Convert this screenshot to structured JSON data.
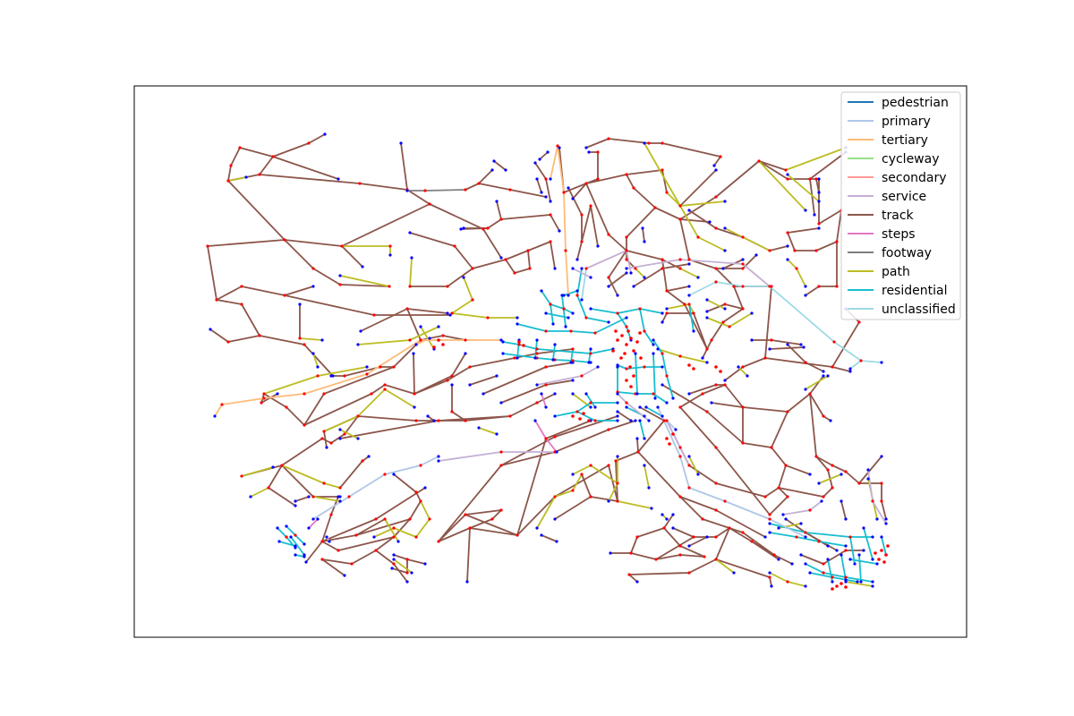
{
  "chart_data": {
    "type": "network",
    "legend": {
      "placement": "top-right",
      "entries": [
        {
          "label": "pedestrian",
          "color": "#1f77b4"
        },
        {
          "label": "primary",
          "color": "#aec7e8"
        },
        {
          "label": "tertiary",
          "color": "#ffbb78"
        },
        {
          "label": "cycleway",
          "color": "#98df8a"
        },
        {
          "label": "secondary",
          "color": "#ff9896"
        },
        {
          "label": "service",
          "color": "#c5b0d5"
        },
        {
          "label": "track",
          "color": "#8c564b"
        },
        {
          "label": "steps",
          "color": "#e377c2"
        },
        {
          "label": "footway",
          "color": "#7f7f7f"
        },
        {
          "label": "path",
          "color": "#bcbd22"
        },
        {
          "label": "residential",
          "color": "#17becf"
        },
        {
          "label": "unclassified",
          "color": "#9edae5"
        }
      ]
    },
    "node_colors": {
      "junction": "#ff0000",
      "dead_end": "#0000ff"
    },
    "grid": false,
    "axes_visible": false
  }
}
